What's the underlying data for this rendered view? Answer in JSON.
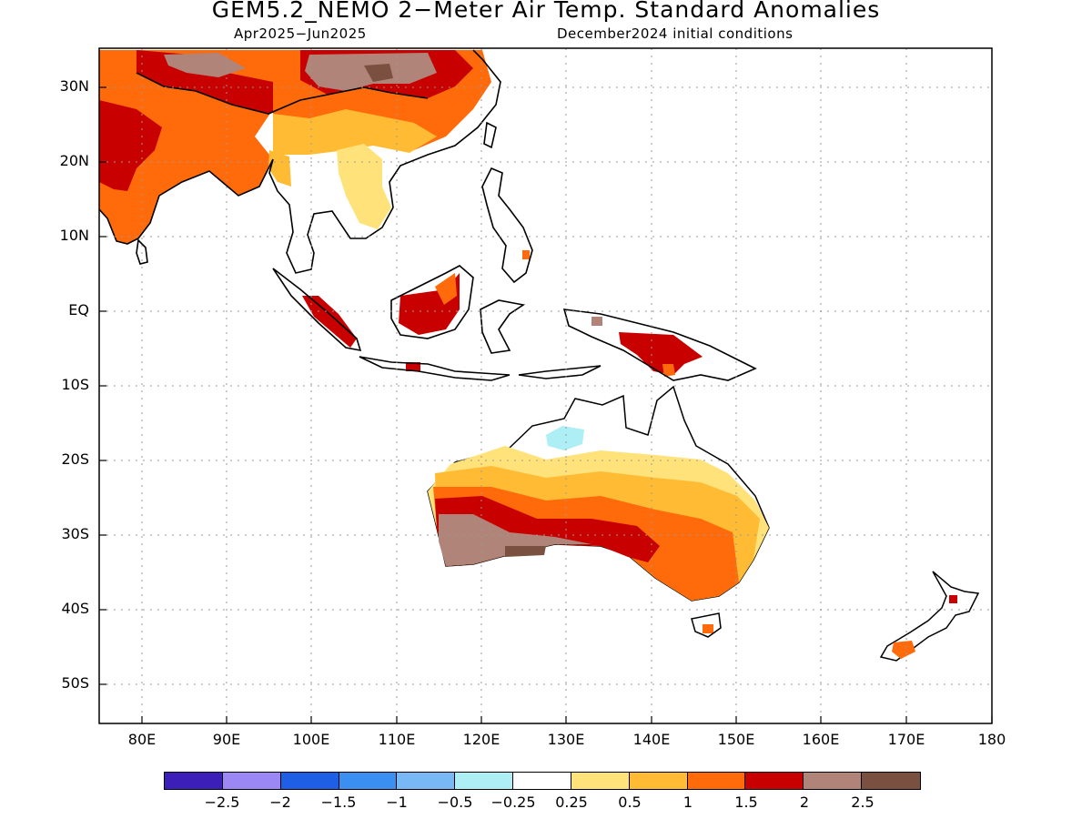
{
  "title": "GEM5.2_NEMO 2−Meter Air Temp. Standard Anomalies",
  "subtitle_left": "Apr2025−Jun2025",
  "subtitle_right": "December2024 initial conditions",
  "lat_labels": [
    "30N",
    "20N",
    "10N",
    "EQ",
    "10S",
    "20S",
    "30S",
    "40S",
    "50S"
  ],
  "lon_labels": [
    "80E",
    "90E",
    "100E",
    "110E",
    "120E",
    "130E",
    "140E",
    "150E",
    "160E",
    "170E",
    "180"
  ],
  "colorbar": {
    "colors": [
      "#3b1fb8",
      "#9b88f5",
      "#1f5fe6",
      "#3a8ff0",
      "#78b8f5",
      "#aeeef5",
      "#ffffff",
      "#ffe27a",
      "#ffbb33",
      "#ff6a0a",
      "#c80000",
      "#b08478",
      "#7a5040"
    ],
    "labels": [
      "−2.5",
      "−2",
      "−1.5",
      "−1",
      "−0.5",
      "−0.25",
      "0.25",
      "0.5",
      "1",
      "1.5",
      "2",
      "2.5"
    ]
  }
}
